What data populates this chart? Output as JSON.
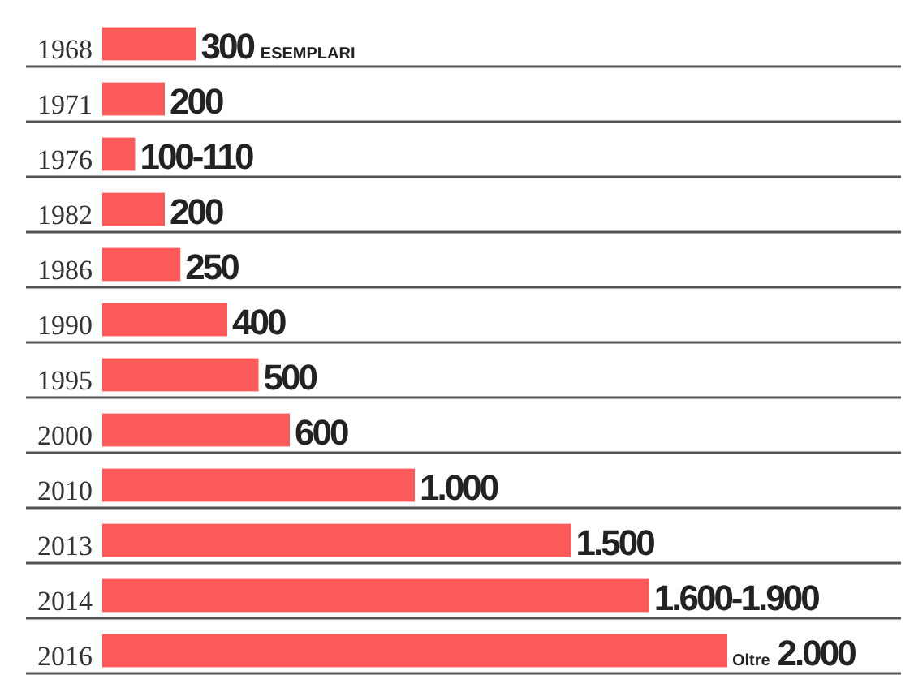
{
  "chart_data": {
    "type": "bar",
    "orientation": "horizontal",
    "categories": [
      "1968",
      "1971",
      "1976",
      "1982",
      "1986",
      "1990",
      "1995",
      "2000",
      "2010",
      "2013",
      "2014",
      "2016"
    ],
    "values": [
      300,
      200,
      105,
      200,
      250,
      400,
      500,
      600,
      1000,
      1500,
      1750,
      2000
    ],
    "value_labels": [
      "300 ESEMPLARI",
      "200",
      "100-110",
      "200",
      "250",
      "400",
      "500",
      "600",
      "1.000",
      "1.500",
      "1.600-1.900",
      "Oltre 2.000"
    ],
    "color": "#fa5a5a"
  }
}
